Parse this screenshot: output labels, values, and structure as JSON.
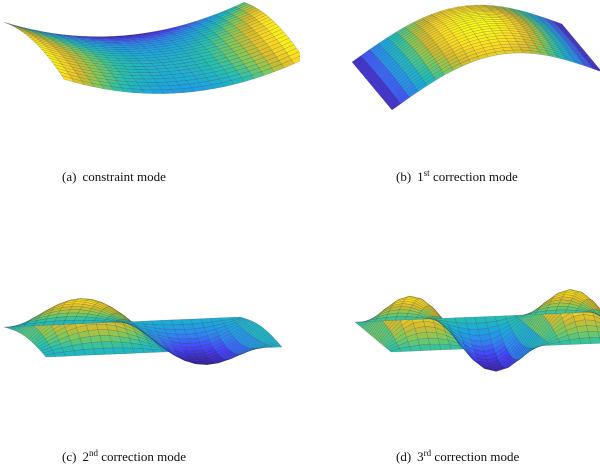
{
  "colormap": [
    "#3e26a8",
    "#4743f8",
    "#2f84f0",
    "#1ca8dc",
    "#27c0ac",
    "#7fc95a",
    "#d5ba2c",
    "#fbda23",
    "#f9fb15"
  ],
  "edge_color": "#1a1a2e",
  "panels": [
    {
      "label": "(a)",
      "title": "constraint mode",
      "ordinal": "",
      "sup": "",
      "suffix": ""
    },
    {
      "label": "(b)",
      "title": "",
      "ordinal": "1",
      "sup": "st",
      "suffix": "correction mode"
    },
    {
      "label": "(c)",
      "title": "",
      "ordinal": "2",
      "sup": "nd",
      "suffix": "correction mode"
    },
    {
      "label": "(d)",
      "title": "",
      "ordinal": "3",
      "sup": "rd",
      "suffix": "correction mode"
    }
  ]
}
